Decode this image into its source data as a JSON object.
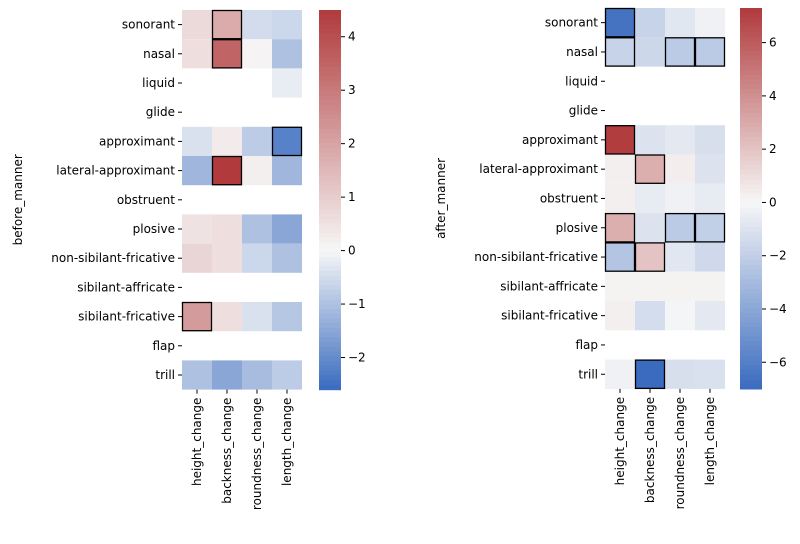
{
  "chart_data": [
    {
      "type": "heatmap",
      "ylabel": "before_manner",
      "xlabel": "",
      "columns": [
        "height_change",
        "backness_change",
        "roundness_change",
        "length_change"
      ],
      "rows": [
        "sonorant",
        "nasal",
        "liquid",
        "glide",
        "approximant",
        "lateral-approximant",
        "obstruent",
        "plosive",
        "non-sibilant-fricative",
        "sibilant-affricate",
        "sibilant-fricative",
        "flap",
        "trill"
      ],
      "values": [
        [
          0.7,
          1.8,
          -0.5,
          -0.6
        ],
        [
          0.6,
          3.5,
          0.1,
          -1.0
        ],
        [
          null,
          null,
          null,
          -0.2
        ],
        [
          null,
          null,
          null,
          null
        ],
        [
          -0.4,
          0.3,
          -0.8,
          -2.2
        ],
        [
          -1.2,
          4.5,
          0.2,
          -1.2
        ],
        [
          null,
          null,
          null,
          null
        ],
        [
          0.5,
          0.6,
          -1.0,
          -1.5
        ],
        [
          0.8,
          0.6,
          -0.6,
          -1.0
        ],
        [
          null,
          null,
          null,
          null
        ],
        [
          2.2,
          0.6,
          -0.4,
          -0.9
        ],
        [
          null,
          null,
          null,
          null
        ],
        [
          -1.0,
          -1.5,
          -1.1,
          -0.8
        ]
      ],
      "highlighted": [
        [
          0,
          1
        ],
        [
          1,
          1
        ],
        [
          4,
          3
        ],
        [
          5,
          1
        ],
        [
          10,
          0
        ]
      ],
      "colorbar": {
        "min": -2.6,
        "max": 4.5,
        "ticks": [
          -2,
          -1,
          0,
          1,
          2,
          3,
          4
        ]
      },
      "colormap": {
        "low": "#3a6bbf",
        "mid": "#f7f7f7",
        "high": "#b03a3c"
      }
    },
    {
      "type": "heatmap",
      "ylabel": "after_manner",
      "xlabel": "",
      "columns": [
        "height_change",
        "backness_change",
        "roundness_change",
        "length_change"
      ],
      "rows": [
        "sonorant",
        "nasal",
        "liquid",
        "glide",
        "approximant",
        "lateral-approximant",
        "obstruent",
        "plosive",
        "non-sibilant-fricative",
        "sibilant-affricate",
        "sibilant-fricative",
        "flap",
        "trill"
      ],
      "values": [
        [
          -6.6,
          -1.8,
          -0.8,
          -0.3
        ],
        [
          -1.8,
          -1.6,
          -2.2,
          -2.2
        ],
        [
          null,
          null,
          null,
          null
        ],
        [
          null,
          null,
          null,
          null
        ],
        [
          7.2,
          -1.0,
          -0.7,
          -1.2
        ],
        [
          0.3,
          2.8,
          0.4,
          -1.0
        ],
        [
          0.3,
          -0.6,
          -0.3,
          -0.6
        ],
        [
          2.8,
          -1.0,
          -2.2,
          -2.0
        ],
        [
          -2.5,
          2.0,
          -0.8,
          -1.5
        ],
        [
          0.2,
          0.2,
          0.2,
          0.2
        ],
        [
          0.3,
          -1.3,
          -0.1,
          -0.7
        ],
        [
          null,
          null,
          null,
          null
        ],
        [
          -0.3,
          -7.0,
          -1.2,
          -1.1
        ]
      ],
      "highlighted": [
        [
          0,
          0
        ],
        [
          1,
          0
        ],
        [
          1,
          2
        ],
        [
          1,
          3
        ],
        [
          4,
          0
        ],
        [
          5,
          1
        ],
        [
          7,
          0
        ],
        [
          7,
          2
        ],
        [
          7,
          3
        ],
        [
          8,
          0
        ],
        [
          8,
          1
        ],
        [
          12,
          1
        ]
      ],
      "colorbar": {
        "min": -7.0,
        "max": 7.3,
        "ticks": [
          -6,
          -4,
          -2,
          0,
          2,
          4,
          6
        ]
      },
      "colormap": {
        "low": "#3a6bbf",
        "mid": "#f7f7f7",
        "high": "#b03a3c"
      }
    }
  ]
}
